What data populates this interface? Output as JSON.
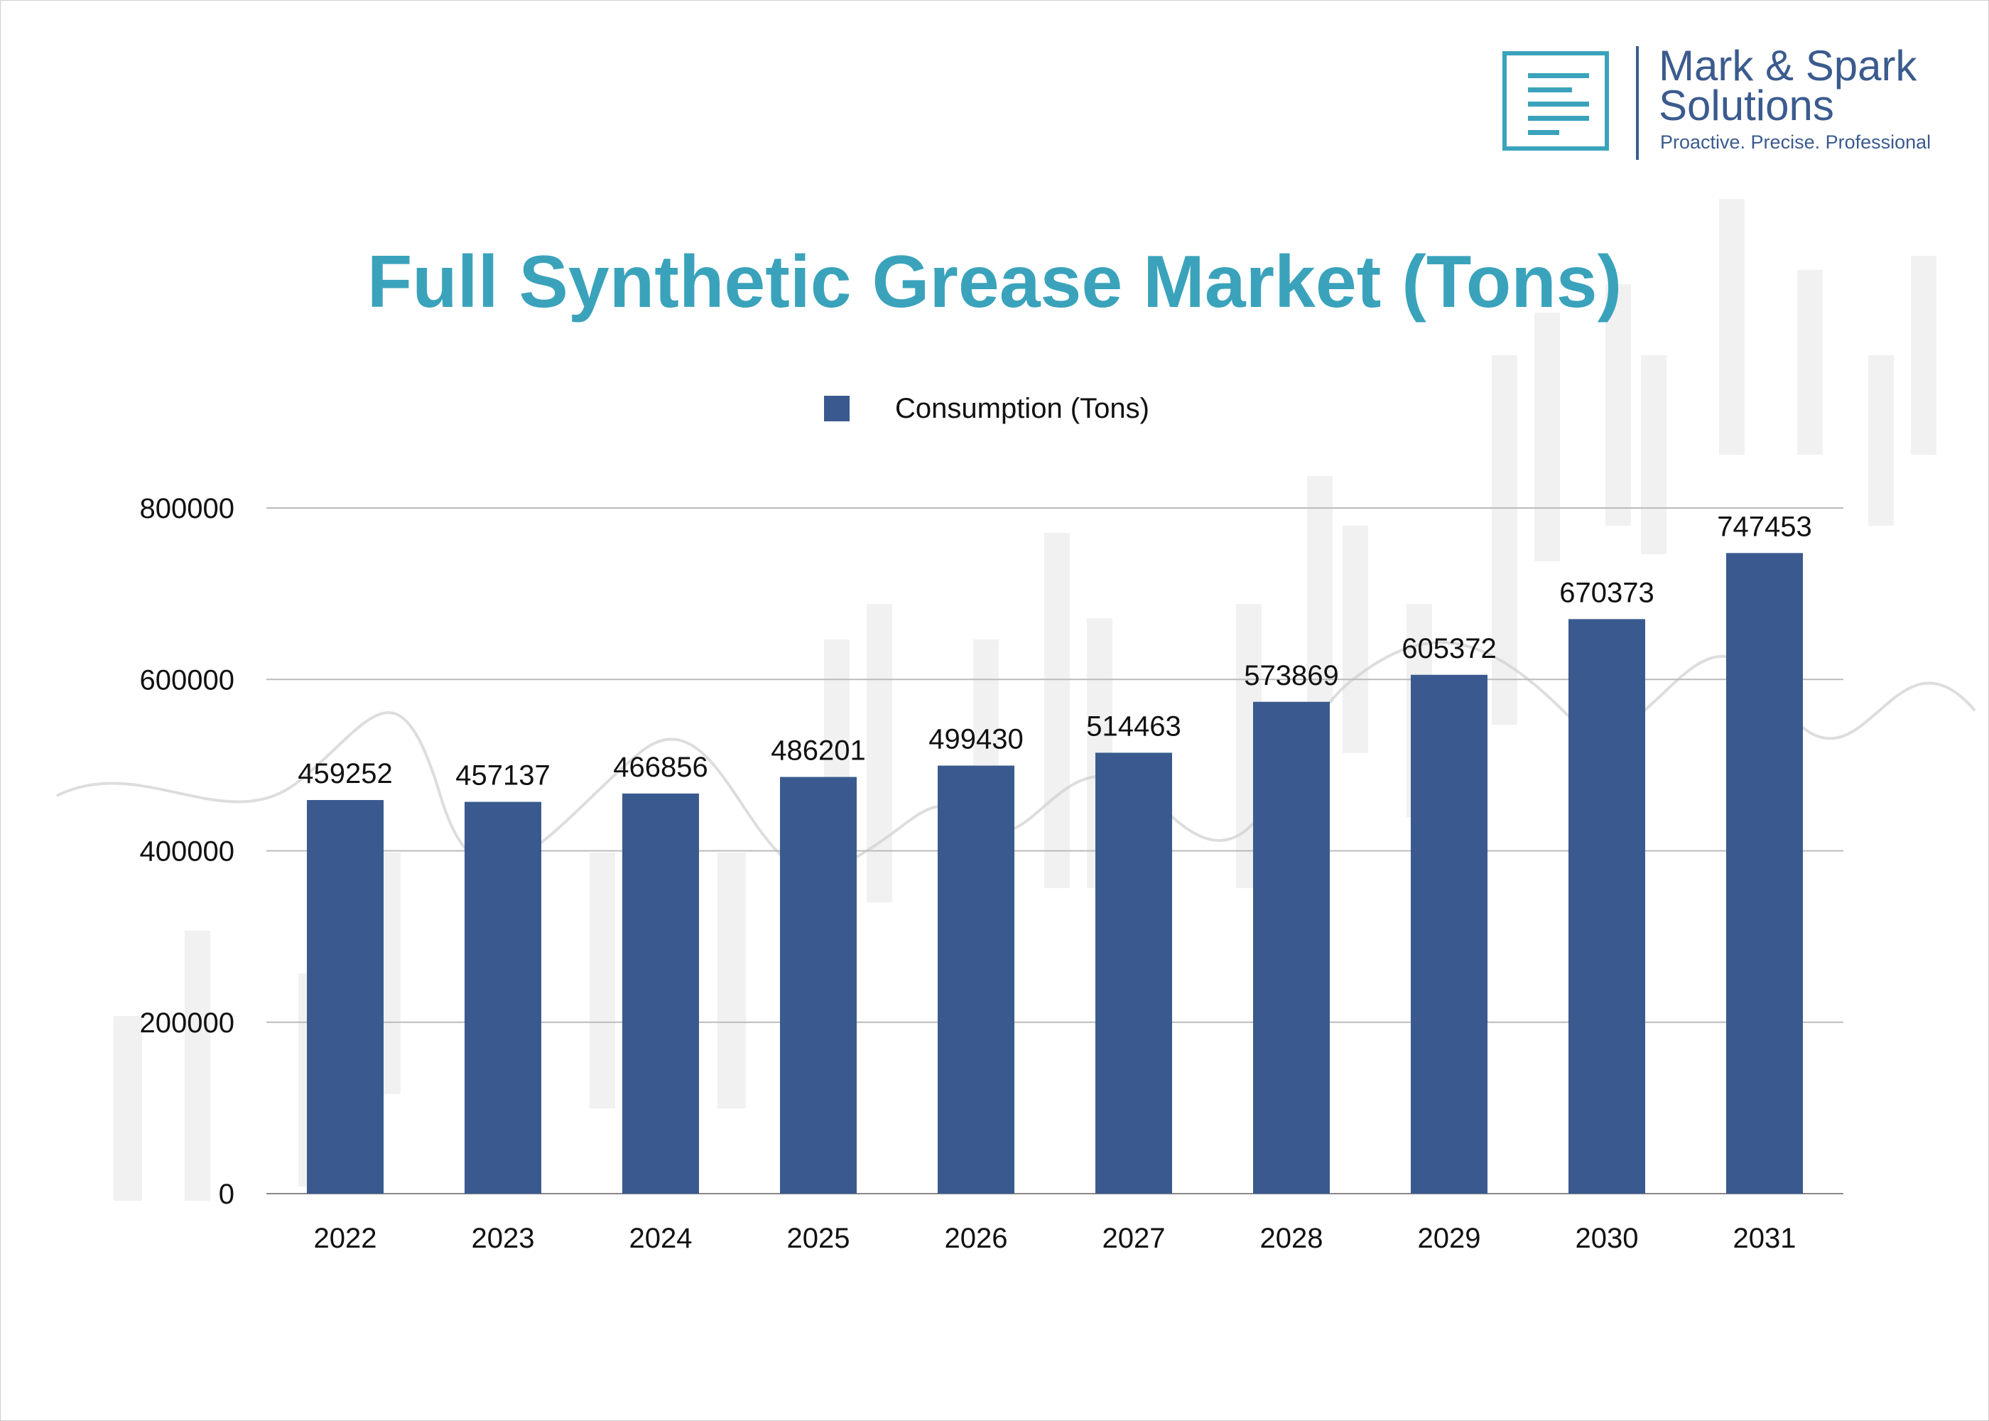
{
  "logo": {
    "name": "Mark & Spark\nSolutions",
    "tagline": "Proactive. Precise. Professional"
  },
  "chart_data": {
    "type": "bar",
    "title": "Full Synthetic Grease Market (Tons)",
    "xlabel": "",
    "ylabel": "",
    "categories": [
      "2022",
      "2023",
      "2024",
      "2025",
      "2026",
      "2027",
      "2028",
      "2029",
      "2030",
      "2031"
    ],
    "series": [
      {
        "name": "Consumption (Tons)",
        "values": [
          459252,
          457137,
          466856,
          486201,
          499430,
          514463,
          573869,
          605372,
          670373,
          747453
        ],
        "color": "#3a5a8f"
      }
    ],
    "data_labels": [
      "459252",
      "457137",
      "466856",
      "486201",
      "499430",
      "514463",
      "573869",
      "605372",
      "670373",
      "747453"
    ],
    "ylim": [
      0,
      800000
    ],
    "y_ticks": [
      0,
      200000,
      400000,
      600000,
      800000
    ],
    "y_tick_labels": [
      "0",
      "200000",
      "400000",
      "600000",
      "800000"
    ],
    "grid": true,
    "legend_position": "top-center"
  },
  "colors": {
    "title": "#3aa3bb",
    "bar": "#3a5a8f",
    "brand": "#3b5b8e",
    "gridline": "#bbbbbb"
  }
}
